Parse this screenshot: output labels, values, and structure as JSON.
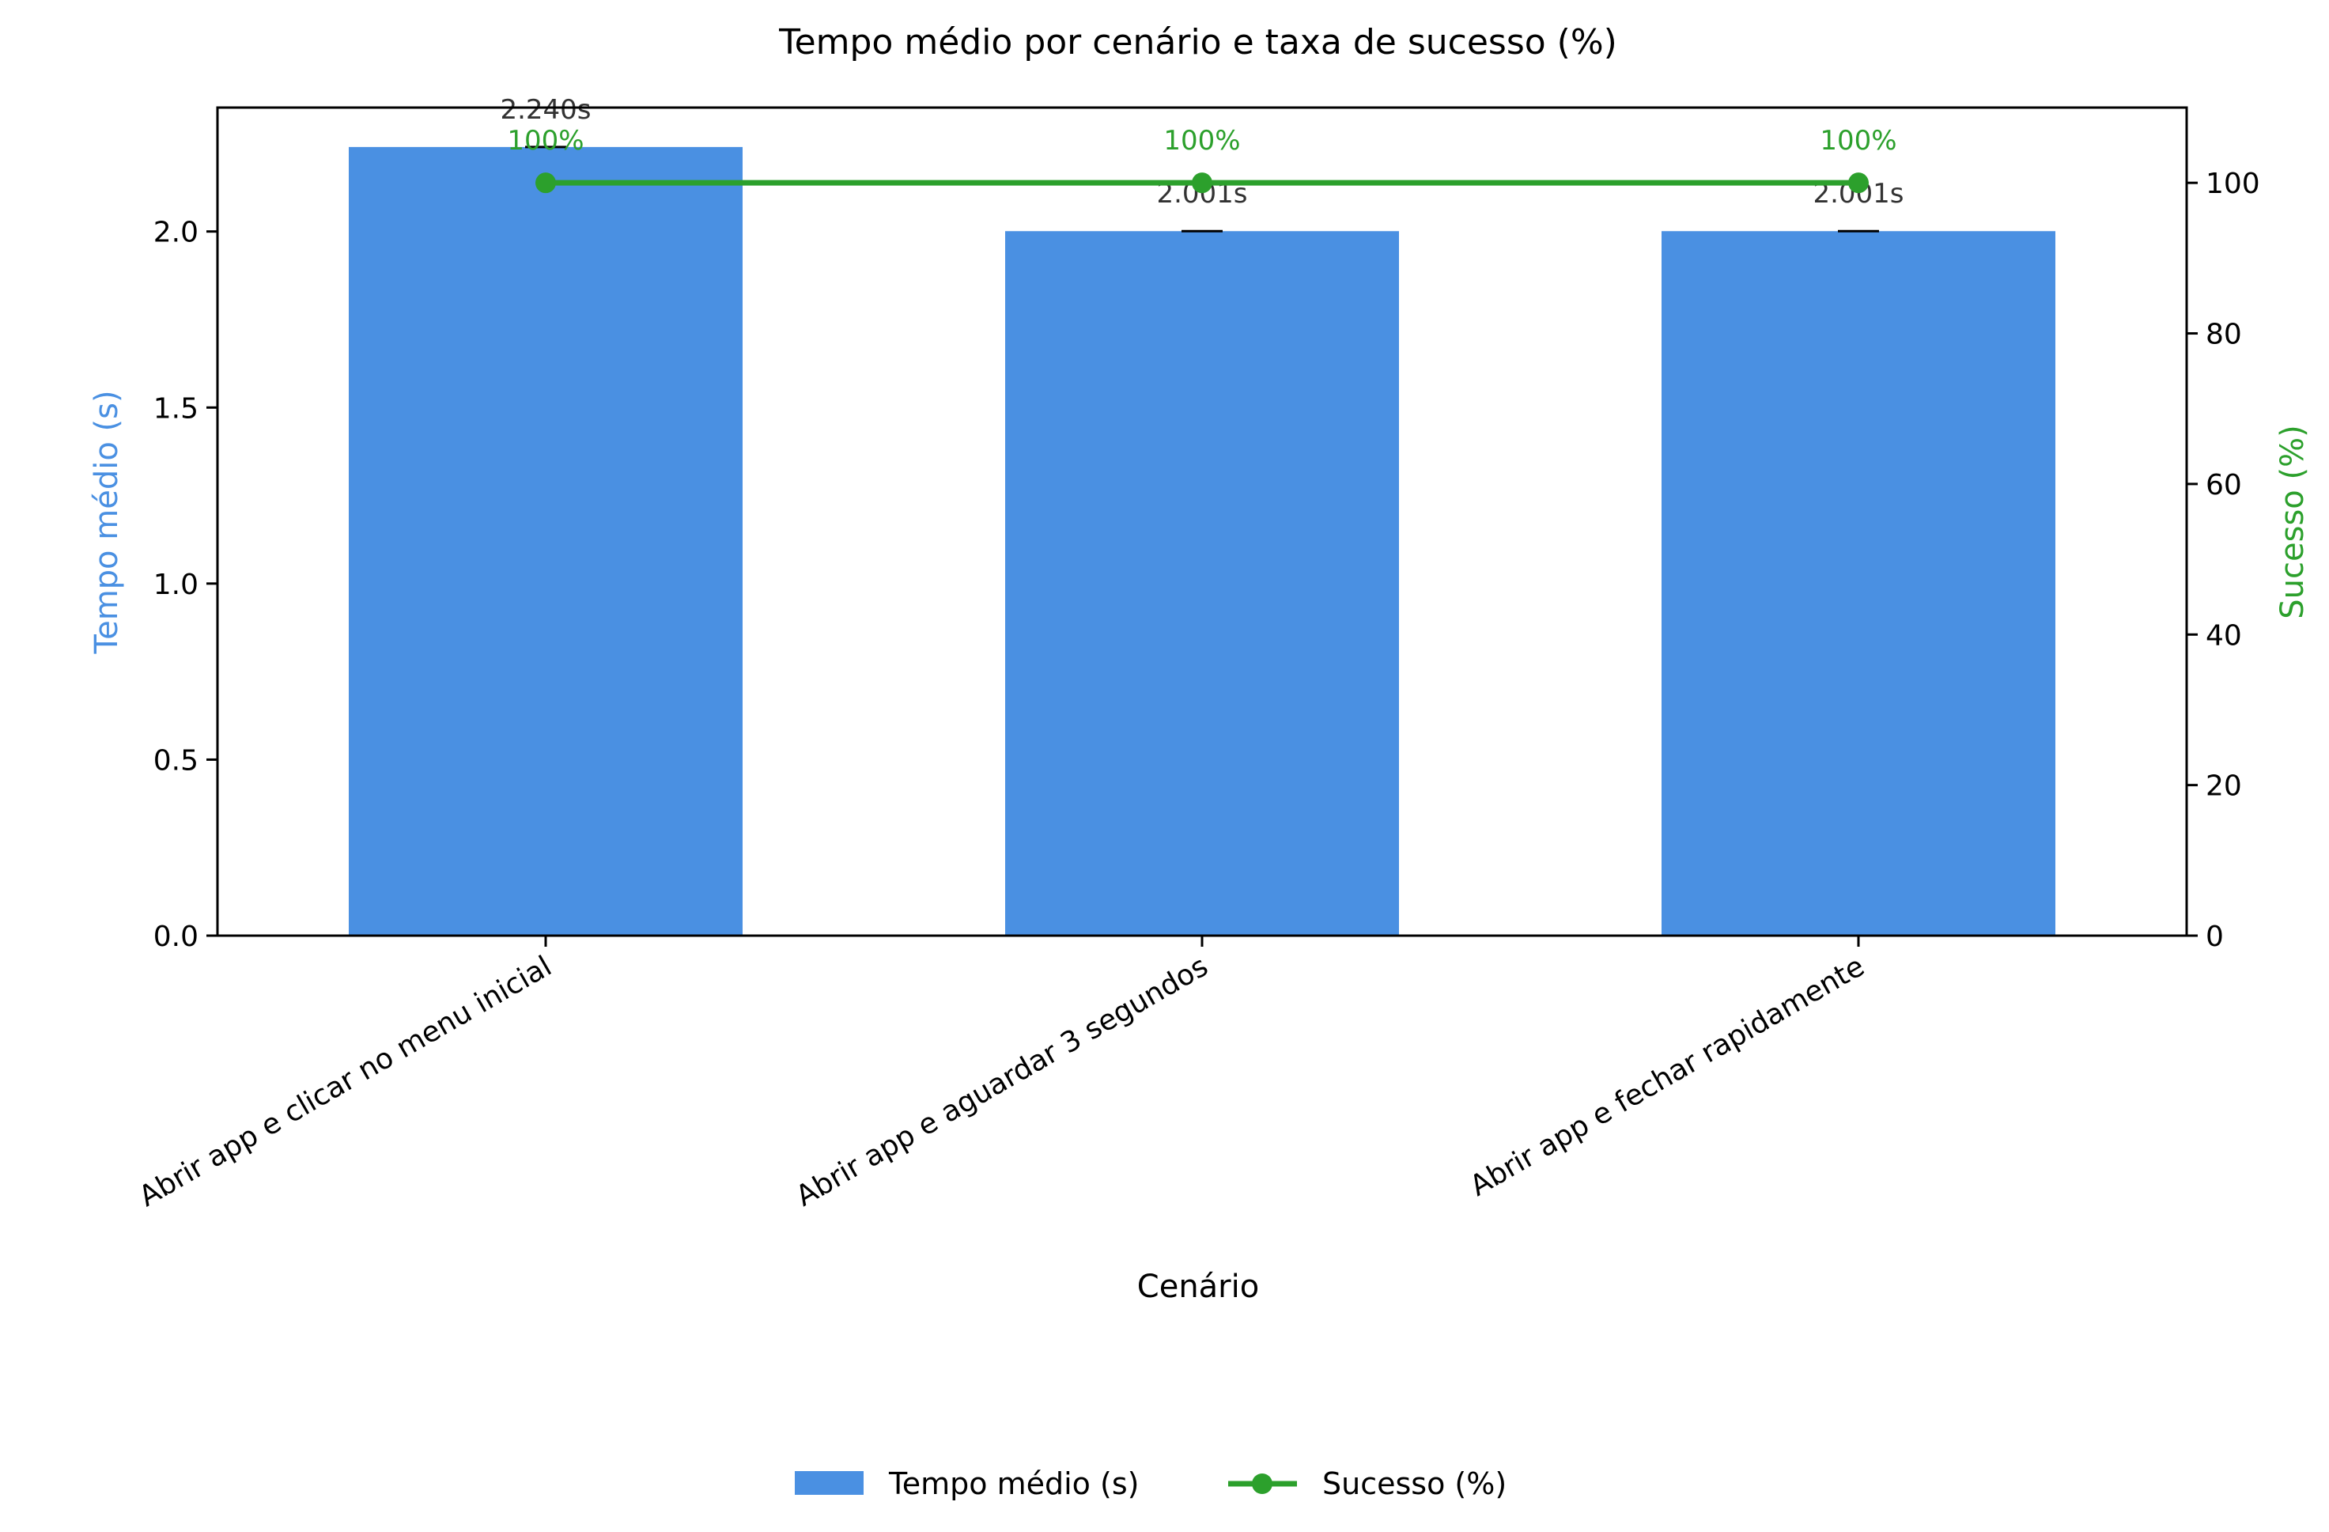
{
  "chart_data": {
    "type": "bar",
    "title": "Tempo médio por cenário e taxa de sucesso (%)",
    "xlabel": "Cenário",
    "ylabel": "Tempo médio (s)",
    "y2label": "Sucesso (%)",
    "categories": [
      "Abrir app e clicar no menu inicial",
      "Abrir app e aguardar 3 segundos",
      "Abrir app e fechar rapidamente"
    ],
    "series": [
      {
        "name": "Tempo médio (s)",
        "type": "bar",
        "axis": "left",
        "values": [
          2.24,
          2.001,
          2.001
        ],
        "labels": [
          "2.240s",
          "2.001s",
          "2.001s"
        ],
        "color": "#4a90e2"
      },
      {
        "name": "Sucesso (%)",
        "type": "line",
        "axis": "right",
        "values": [
          100,
          100,
          100
        ],
        "labels": [
          "100%",
          "100%",
          "100%"
        ],
        "color": "#2ca02c"
      }
    ],
    "ylim": [
      0,
      2.352
    ],
    "y2lim": [
      0,
      110
    ],
    "yticks": [
      0.0,
      0.5,
      1.0,
      1.5,
      2.0
    ],
    "ytick_labels": [
      "0.0",
      "0.5",
      "1.0",
      "1.5",
      "2.0"
    ],
    "y2ticks": [
      0,
      20,
      40,
      60,
      80,
      100
    ],
    "y2tick_labels": [
      "0",
      "20",
      "40",
      "60",
      "80",
      "100"
    ],
    "grid": false,
    "legend_position": "bottom-center",
    "colors": {
      "left_axis_label": "#4a90e2",
      "right_axis_label": "#2ca02c",
      "value_label": "#333333",
      "axis": "#000000"
    }
  }
}
